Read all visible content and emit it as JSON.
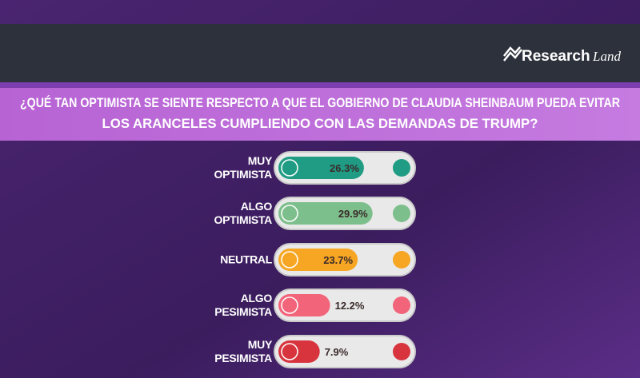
{
  "brand": {
    "name": "Research",
    "suffix": "Land"
  },
  "chart_data": {
    "type": "bar",
    "title": [
      "¿QUÉ TAN OPTIMISTA SE SIENTE RESPECTO A QUE EL GOBIERNO DE CLAUDIA SHEINBAUM PUEDA EVITAR",
      "LOS ARANCELES CUMPLIENDO CON LAS DEMANDAS DE TRUMP?"
    ],
    "categories": [
      "MUY OPTIMISTA",
      "ALGO OPTIMISTA",
      "NEUTRAL",
      "ALGO PESIMISTA",
      "MUY PESIMISTA"
    ],
    "values": [
      26.3,
      29.9,
      23.7,
      12.2,
      7.9
    ],
    "value_labels": [
      "26.3%",
      "29.9%",
      "23.7%",
      "12.2%",
      "7.9%"
    ],
    "colors": [
      "#1f9c83",
      "#7dbf8c",
      "#f6a623",
      "#f1647a",
      "#d7343e"
    ]
  }
}
